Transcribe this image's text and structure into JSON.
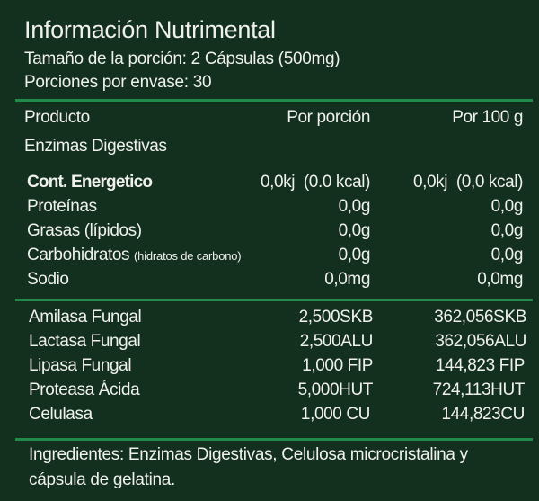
{
  "title": "Información Nutrimental",
  "serving_size": "Tamaño de la porción: 2 Cápsulas (500mg)",
  "servings_per_container": "Porciones por envase: 30",
  "header": {
    "product": "Producto",
    "per_serving": "Por porción",
    "per_100g": "Por 100 g"
  },
  "product_name": "Enzimas Digestivas",
  "nutrients": [
    {
      "label": "Cont. Energetico",
      "per_serving": "0,0kj  (0.0 kcal)",
      "per_100g": "0,0kj  (0,0 kcal)"
    },
    {
      "label": "Proteínas",
      "per_serving": "0,0g",
      "per_100g": "0,0g"
    },
    {
      "label": "Grasas (lípidos)",
      "per_serving": "0,0g",
      "per_100g": "0,0g"
    },
    {
      "label": "Carbohidratos",
      "note": "(hidratos de carbono)",
      "per_serving": "0,0g",
      "per_100g": "0,0g"
    },
    {
      "label": "Sodio",
      "per_serving": "0,0mg",
      "per_100g": "0,0mg"
    }
  ],
  "enzymes": [
    {
      "label": "Amilasa Fungal",
      "per_serving": "2,500SKB",
      "per_100g": "362,056SKB"
    },
    {
      "label": "Lactasa Fungal",
      "per_serving": "2,500ALU",
      "per_100g": "362,056ALU"
    },
    {
      "label": "Lipasa Fungal",
      "per_serving": "1,000 FIP",
      "per_100g": "144,823 FIP"
    },
    {
      "label": "Proteasa Ácida",
      "per_serving": "5,000HUT",
      "per_100g": "724,113HUT"
    },
    {
      "label": "Celulasa",
      "per_serving": "1,000 CU",
      "per_100g": "144,823CU"
    }
  ],
  "ingredients": "Ingredientes: Enzimas Digestivas,  Celulosa microcristalina y cápsula de gelatina.",
  "colors": {
    "background": "#13301f",
    "rule": "#21894a",
    "text": "#f0f0ec"
  }
}
